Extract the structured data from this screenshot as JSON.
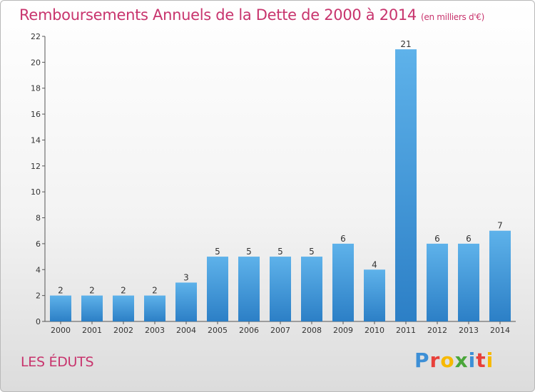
{
  "header": {
    "title": "Remboursements Annuels de la Dette de 2000 à 2014",
    "subtitle": "(en milliers d'€)"
  },
  "footer": {
    "place": "LES ÉDUTS",
    "logo": "Proxiti",
    "logo_colors": [
      "#3d8fd6",
      "#e8403a",
      "#f7b900",
      "#4aa63a",
      "#3d8fd6",
      "#e8403a",
      "#f7b900"
    ]
  },
  "chart_data": {
    "type": "bar",
    "title": "Remboursements Annuels de la Dette de 2000 à 2014",
    "subtitle": "(en milliers d'€)",
    "categories": [
      "2000",
      "2001",
      "2002",
      "2003",
      "2004",
      "2005",
      "2006",
      "2007",
      "2008",
      "2009",
      "2010",
      "2011",
      "2012",
      "2013",
      "2014"
    ],
    "values": [
      2,
      2,
      2,
      2,
      3,
      5,
      5,
      5,
      5,
      6,
      4,
      21,
      6,
      6,
      7
    ],
    "ylim": [
      0,
      22
    ],
    "yticks": [
      0,
      2,
      4,
      6,
      8,
      10,
      12,
      14,
      16,
      18,
      20,
      22
    ],
    "grid": false,
    "bar_color": "#3d8fd6",
    "bar_color_light": "#5eb2ea",
    "xlabel": "",
    "ylabel": ""
  }
}
